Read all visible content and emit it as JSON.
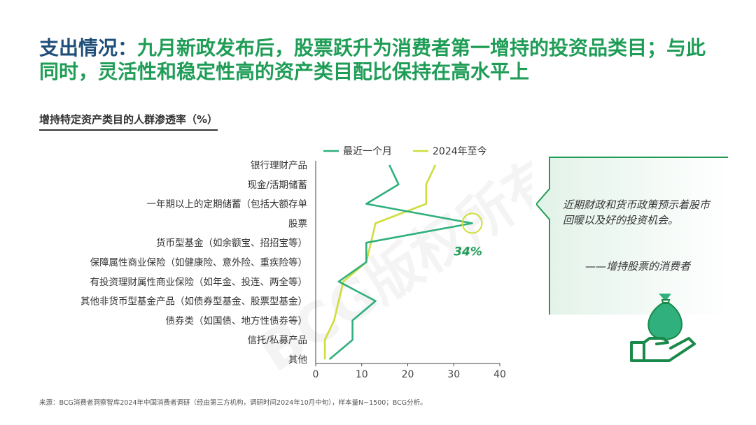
{
  "title": {
    "lead": "支出情况：",
    "rest": "九月新政发布后，股票跃升为消费者第一增持的投资品类目；与此同时，灵活性和稳定性高的资产类目配比保持在高水平上"
  },
  "chart_data": {
    "type": "line",
    "title": "增持特定资产类目的人群渗透率（%）",
    "orientation": "horizontal",
    "categories": [
      "银行理财产品",
      "现金/活期储蓄",
      "一年期以上的定期储蓄（包括大额存单",
      "股票",
      "货币型基金（如余额宝、招招宝等）",
      "保障属性商业保险（如健康险、意外险、重疾险等）",
      "有投资理财属性商业保险（如年金、投连、两全等）",
      "其他非货币型基金产品（如债券型基金、股票型基金）",
      "债券类（如国债、地方性债券等）",
      "信托/私募产品",
      "其他"
    ],
    "series": [
      {
        "name": "最近一个月",
        "color": "#2fb07c",
        "values": [
          16,
          18,
          11,
          34,
          11,
          11,
          5,
          13,
          8,
          8,
          3
        ]
      },
      {
        "name": "2024年至今",
        "color": "#cfdd3c",
        "values": [
          26,
          24,
          24,
          13,
          12,
          11,
          6,
          5,
          4,
          2,
          2
        ]
      }
    ],
    "xlim": [
      0,
      40
    ],
    "xticks": [
      0,
      10,
      20,
      30,
      40
    ],
    "grid": false,
    "legend_position": "top",
    "annotation": {
      "category": "股票",
      "series": "最近一个月",
      "label": "34%",
      "color": "#1f9d57"
    }
  },
  "callout": {
    "quote": "近期财政和货币政策预示着股市回暖以及好的投资机会。",
    "attribution": "——增持股票的消费者",
    "icon": "money-bag-hand-icon",
    "accent": "#1f9d57"
  },
  "watermark": "BCG版权所有",
  "source": "来源：BCG消费者洞察智库2024年中国消费者调研（经由第三方机构，调研时间2024年10月中旬），样本量N~1500；BCG分析。"
}
